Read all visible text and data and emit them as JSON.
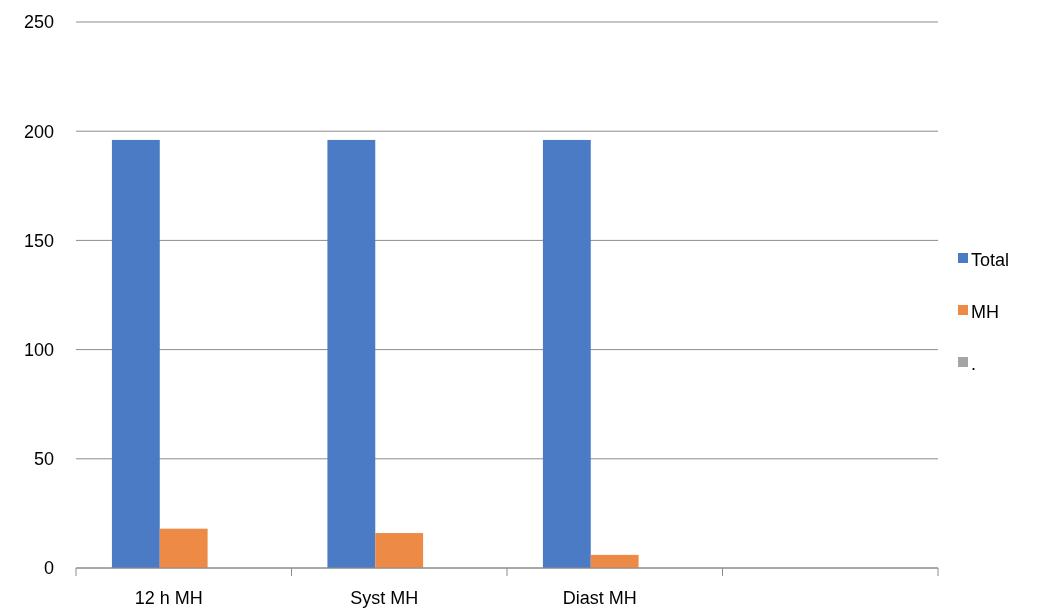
{
  "chart_data": {
    "type": "bar",
    "categories": [
      "12 h MH",
      "Syst MH",
      "Diast MH",
      null
    ],
    "series": [
      {
        "name": "Total",
        "color": "#4a7bc4",
        "values": [
          196,
          196,
          196,
          null
        ]
      },
      {
        "name": "MH",
        "color": "#ed8a45",
        "values": [
          18,
          16,
          6,
          null
        ]
      },
      {
        "name": ".",
        "color": "#a5a5a5",
        "values": [
          null,
          null,
          null,
          null
        ]
      }
    ],
    "ylim": [
      0,
      250
    ],
    "yticks": [
      0,
      50,
      100,
      150,
      200,
      250
    ],
    "grid": "y",
    "legend": "right"
  }
}
